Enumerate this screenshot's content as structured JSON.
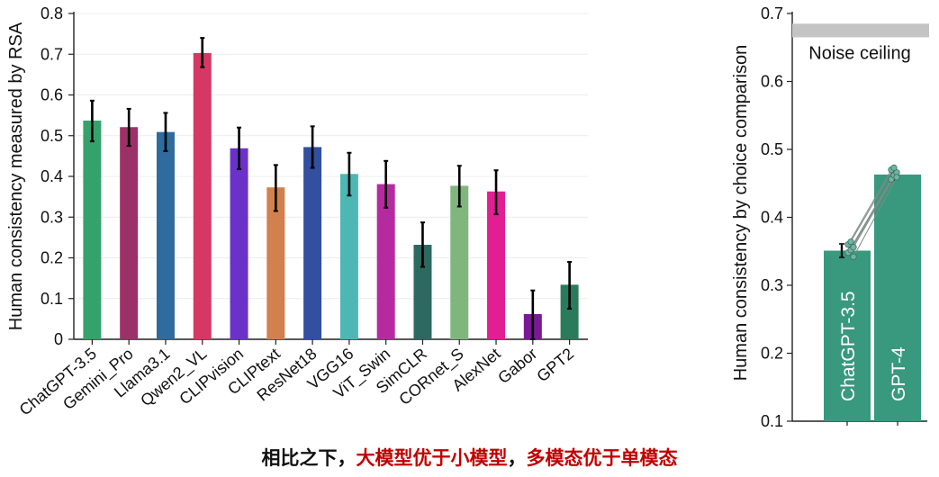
{
  "chart_data": [
    {
      "type": "bar",
      "ylabel": "Human consistency measured by RSA",
      "ylim": [
        0,
        0.8
      ],
      "yticks": [
        "0",
        "0.1",
        "0.2",
        "0.3",
        "0.4",
        "0.5",
        "0.6",
        "0.7",
        "0.8"
      ],
      "grid": true,
      "categories": [
        "ChatGPT-3.5",
        "Gemini_Pro",
        "Llama3.1",
        "Qwen2_VL",
        "CLIPvision",
        "CLIPtext",
        "ResNet18",
        "VGG16",
        "ViT_Swin",
        "SimCLR",
        "CORnet_S",
        "AlexNet",
        "Gabor",
        "GPT2"
      ],
      "values": [
        0.537,
        0.521,
        0.509,
        0.703,
        0.469,
        0.373,
        0.472,
        0.406,
        0.381,
        0.232,
        0.377,
        0.363,
        0.062,
        0.134
      ],
      "err_low": [
        0.486,
        0.475,
        0.462,
        0.668,
        0.418,
        0.315,
        0.421,
        0.353,
        0.323,
        0.178,
        0.326,
        0.307,
        0.0,
        0.075
      ],
      "err_high": [
        0.586,
        0.566,
        0.556,
        0.74,
        0.52,
        0.428,
        0.523,
        0.458,
        0.438,
        0.287,
        0.426,
        0.415,
        0.12,
        0.19
      ],
      "colors": [
        "#36a26b",
        "#9b3166",
        "#2f6b9d",
        "#d63865",
        "#6a32c9",
        "#d0814e",
        "#334fa0",
        "#4db7b4",
        "#b52b9f",
        "#2d6861",
        "#80b67e",
        "#e21e93",
        "#7a1996",
        "#2a7b5c"
      ]
    },
    {
      "type": "bar",
      "ylabel": "Human consistency by choice comparison",
      "ylim": [
        0.1,
        0.7
      ],
      "yticks": [
        "0.1",
        "0.2",
        "0.3",
        "0.4",
        "0.5",
        "0.6",
        "0.7"
      ],
      "categories": [
        "ChatGPT-3.5",
        "GPT-4"
      ],
      "values": [
        0.351,
        0.463
      ],
      "err_low": [
        0.341,
        0.455
      ],
      "err_high": [
        0.361,
        0.471
      ],
      "color": "#38997f",
      "noise_ceiling": {
        "label": "Noise ceiling",
        "low": 0.665,
        "high": 0.685
      },
      "points_a": [
        0.348,
        0.352,
        0.356,
        0.36,
        0.364,
        0.342
      ],
      "points_b": [
        0.456,
        0.462,
        0.466,
        0.47,
        0.473,
        0.459
      ]
    }
  ],
  "caption": {
    "part1": "相比之下，",
    "part2": "大模型优于小模型",
    "part3": "，",
    "part4": "多模态优于单模态"
  }
}
